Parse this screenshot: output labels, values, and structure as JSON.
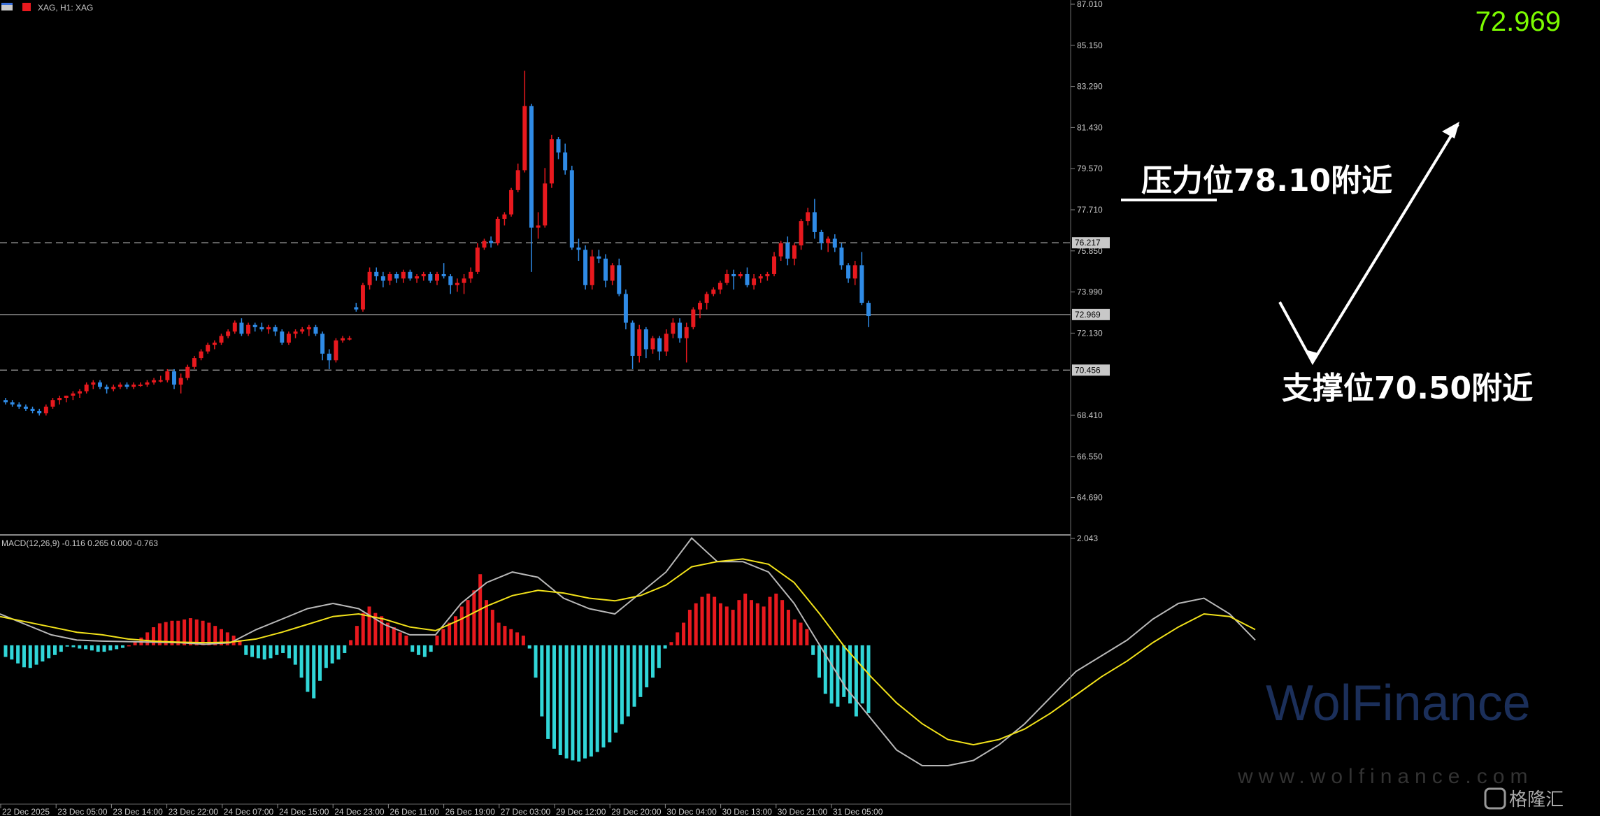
{
  "header": {
    "symbol_info": "XAG, H1: XAG"
  },
  "big_price": "72.969",
  "macd_label": "MACD(12,26,9) -0.116 0.265 0.000 -0.763",
  "annotations": {
    "resistance": "压力位78.10附近",
    "support": "支撑位70.50附近"
  },
  "watermark": {
    "brand": "WolFinance",
    "url": "www.wolfinance.com",
    "corner": "格隆汇"
  },
  "colors": {
    "bull": "#e8191e",
    "bear": "#2f8be6",
    "hist_pos": "#e8191e",
    "hist_neg": "#31d6d8",
    "macd_line": "#b8b8b8",
    "signal_line": "#f2e21a",
    "big_price": "#7cfc00"
  },
  "chart_data": {
    "type": "candlestick",
    "price_axis": {
      "min": 63.0,
      "max": 87.2,
      "ticks": [
        "87.010",
        "85.150",
        "83.290",
        "81.430",
        "79.570",
        "77.710",
        "75.850",
        "73.990",
        "72.130",
        "68.410",
        "66.550",
        "64.690"
      ]
    },
    "levels": [
      {
        "label": "76.217",
        "value": 76.217,
        "style": "dashed"
      },
      {
        "label": "72.969",
        "value": 72.969,
        "style": "solid"
      },
      {
        "label": "70.456",
        "value": 70.456,
        "style": "dashed"
      }
    ],
    "macd_axis": {
      "top_label": "2.043",
      "min": -2.3,
      "max": 2.043
    },
    "time_labels": [
      "22 Dec 2025",
      "23 Dec 05:00",
      "23 Dec 14:00",
      "23 Dec 22:00",
      "24 Dec 07:00",
      "24 Dec 15:00",
      "24 Dec 23:00",
      "26 Dec 11:00",
      "26 Dec 19:00",
      "27 Dec 03:00",
      "29 Dec 12:00",
      "29 Dec 20:00",
      "30 Dec 04:00",
      "30 Dec 13:00",
      "30 Dec 21:00",
      "31 Dec 05:00"
    ],
    "candles": [
      [
        69.1,
        69.2,
        68.9,
        69.0
      ],
      [
        69.0,
        69.1,
        68.8,
        68.9
      ],
      [
        68.9,
        69.0,
        68.7,
        68.8
      ],
      [
        68.8,
        68.9,
        68.6,
        68.7
      ],
      [
        68.7,
        68.8,
        68.5,
        68.6
      ],
      [
        68.6,
        68.7,
        68.4,
        68.5
      ],
      [
        68.5,
        68.9,
        68.4,
        68.8
      ],
      [
        68.8,
        69.2,
        68.7,
        69.1
      ],
      [
        69.1,
        69.3,
        68.9,
        69.2
      ],
      [
        69.2,
        69.3,
        69.0,
        69.3
      ],
      [
        69.3,
        69.5,
        69.1,
        69.4
      ],
      [
        69.4,
        69.6,
        69.2,
        69.5
      ],
      [
        69.5,
        69.9,
        69.4,
        69.8
      ],
      [
        69.8,
        70.0,
        69.6,
        69.9
      ],
      [
        69.9,
        70.0,
        69.6,
        69.7
      ],
      [
        69.7,
        69.8,
        69.4,
        69.6
      ],
      [
        69.6,
        69.8,
        69.5,
        69.7
      ],
      [
        69.7,
        69.9,
        69.6,
        69.8
      ],
      [
        69.8,
        69.9,
        69.6,
        69.7
      ],
      [
        69.7,
        69.9,
        69.6,
        69.8
      ],
      [
        69.8,
        69.9,
        69.7,
        69.8
      ],
      [
        69.8,
        70.0,
        69.7,
        69.9
      ],
      [
        69.9,
        70.1,
        69.8,
        70.0
      ],
      [
        70.0,
        70.2,
        69.9,
        70.0
      ],
      [
        70.0,
        70.5,
        69.9,
        70.4
      ],
      [
        70.4,
        70.5,
        69.6,
        69.8
      ],
      [
        69.8,
        70.3,
        69.4,
        70.1
      ],
      [
        70.1,
        70.7,
        70.0,
        70.6
      ],
      [
        70.6,
        71.1,
        70.5,
        71.0
      ],
      [
        71.0,
        71.4,
        70.9,
        71.3
      ],
      [
        71.3,
        71.7,
        71.2,
        71.6
      ],
      [
        71.6,
        71.8,
        71.4,
        71.7
      ],
      [
        71.7,
        72.1,
        71.6,
        72.0
      ],
      [
        72.0,
        72.3,
        71.9,
        72.2
      ],
      [
        72.2,
        72.7,
        72.1,
        72.6
      ],
      [
        72.6,
        72.8,
        72.0,
        72.1
      ],
      [
        72.1,
        72.6,
        72.0,
        72.5
      ],
      [
        72.5,
        72.6,
        72.2,
        72.4
      ],
      [
        72.4,
        72.6,
        72.2,
        72.3
      ],
      [
        72.3,
        72.5,
        72.1,
        72.4
      ],
      [
        72.4,
        72.5,
        72.0,
        72.2
      ],
      [
        72.2,
        72.3,
        71.6,
        71.7
      ],
      [
        71.7,
        72.2,
        71.6,
        72.1
      ],
      [
        72.1,
        72.3,
        71.9,
        72.2
      ],
      [
        72.2,
        72.4,
        72.1,
        72.3
      ],
      [
        72.3,
        72.5,
        72.0,
        72.4
      ],
      [
        72.4,
        72.5,
        72.0,
        72.1
      ],
      [
        72.1,
        72.2,
        70.9,
        71.2
      ],
      [
        71.2,
        71.4,
        70.5,
        70.9
      ],
      [
        70.9,
        71.9,
        70.8,
        71.8
      ],
      [
        71.8,
        72.0,
        71.7,
        71.9
      ],
      [
        71.9,
        72.0,
        71.8,
        71.9
      ],
      [
        73.3,
        73.5,
        73.1,
        73.2
      ],
      [
        73.2,
        74.4,
        73.1,
        74.3
      ],
      [
        74.3,
        75.1,
        74.1,
        74.9
      ],
      [
        74.9,
        75.1,
        74.5,
        74.7
      ],
      [
        74.7,
        74.9,
        74.2,
        74.5
      ],
      [
        74.5,
        74.9,
        74.3,
        74.8
      ],
      [
        74.8,
        74.9,
        74.4,
        74.6
      ],
      [
        74.6,
        75.0,
        74.4,
        74.9
      ],
      [
        74.9,
        75.0,
        74.5,
        74.6
      ],
      [
        74.6,
        74.8,
        74.4,
        74.7
      ],
      [
        74.7,
        74.9,
        74.5,
        74.8
      ],
      [
        74.8,
        74.9,
        74.4,
        74.5
      ],
      [
        74.5,
        74.9,
        74.3,
        74.8
      ],
      [
        74.8,
        75.3,
        74.6,
        74.7
      ],
      [
        74.7,
        74.8,
        73.9,
        74.3
      ],
      [
        74.3,
        74.6,
        74.0,
        74.4
      ],
      [
        74.4,
        74.8,
        73.9,
        74.6
      ],
      [
        74.6,
        75.1,
        74.4,
        74.9
      ],
      [
        74.9,
        76.2,
        74.8,
        76.0
      ],
      [
        76.0,
        76.4,
        75.9,
        76.3
      ],
      [
        76.3,
        76.5,
        76.0,
        76.2
      ],
      [
        76.2,
        77.4,
        76.1,
        77.3
      ],
      [
        77.3,
        77.6,
        77.0,
        77.5
      ],
      [
        77.5,
        78.7,
        77.4,
        78.6
      ],
      [
        78.6,
        79.8,
        78.5,
        79.5
      ],
      [
        79.5,
        84.0,
        79.4,
        82.4
      ],
      [
        82.4,
        82.5,
        74.9,
        76.9
      ],
      [
        76.9,
        77.6,
        76.4,
        77.0
      ],
      [
        77.0,
        79.6,
        76.9,
        78.9
      ],
      [
        78.9,
        81.1,
        78.7,
        80.9
      ],
      [
        80.9,
        81.0,
        80.0,
        80.3
      ],
      [
        80.3,
        80.7,
        79.3,
        79.5
      ],
      [
        79.5,
        79.7,
        75.9,
        76.0
      ],
      [
        76.0,
        76.4,
        75.4,
        75.9
      ],
      [
        75.9,
        76.1,
        74.1,
        74.3
      ],
      [
        74.3,
        75.9,
        74.1,
        75.6
      ],
      [
        75.6,
        75.9,
        75.3,
        75.5
      ],
      [
        75.5,
        75.7,
        74.2,
        74.5
      ],
      [
        74.5,
        75.3,
        74.3,
        75.2
      ],
      [
        75.2,
        75.5,
        73.8,
        73.9
      ],
      [
        73.9,
        74.1,
        72.3,
        72.6
      ],
      [
        72.6,
        72.7,
        70.5,
        71.1
      ],
      [
        71.1,
        72.5,
        70.8,
        72.3
      ],
      [
        72.3,
        72.4,
        71.0,
        71.4
      ],
      [
        71.4,
        72.0,
        71.2,
        71.9
      ],
      [
        71.9,
        72.0,
        70.9,
        71.3
      ],
      [
        71.3,
        72.3,
        71.1,
        72.1
      ],
      [
        72.1,
        72.8,
        71.9,
        72.6
      ],
      [
        72.6,
        72.8,
        71.7,
        71.9
      ],
      [
        71.9,
        72.6,
        70.8,
        72.4
      ],
      [
        72.4,
        73.3,
        72.3,
        73.2
      ],
      [
        73.2,
        73.6,
        72.8,
        73.5
      ],
      [
        73.5,
        74.0,
        73.2,
        73.9
      ],
      [
        73.9,
        74.2,
        73.8,
        74.1
      ],
      [
        74.1,
        74.5,
        73.9,
        74.4
      ],
      [
        74.4,
        75.0,
        74.3,
        74.8
      ],
      [
        74.8,
        75.0,
        74.1,
        74.7
      ],
      [
        74.7,
        74.9,
        74.6,
        74.8
      ],
      [
        74.8,
        75.1,
        74.2,
        74.3
      ],
      [
        74.3,
        74.8,
        74.1,
        74.6
      ],
      [
        74.6,
        74.8,
        74.4,
        74.7
      ],
      [
        74.7,
        74.9,
        74.5,
        74.8
      ],
      [
        74.8,
        75.8,
        74.7,
        75.6
      ],
      [
        75.6,
        76.3,
        75.4,
        76.2
      ],
      [
        76.2,
        76.5,
        75.2,
        75.5
      ],
      [
        75.5,
        76.2,
        75.2,
        76.1
      ],
      [
        76.1,
        77.3,
        75.9,
        77.2
      ],
      [
        77.2,
        77.8,
        77.0,
        77.6
      ],
      [
        77.6,
        78.2,
        76.4,
        76.7
      ],
      [
        76.7,
        76.8,
        75.9,
        76.2
      ],
      [
        76.2,
        76.5,
        75.8,
        76.4
      ],
      [
        76.4,
        76.6,
        75.8,
        76.0
      ],
      [
        76.0,
        76.2,
        75.0,
        75.2
      ],
      [
        75.2,
        75.3,
        74.4,
        74.6
      ],
      [
        74.6,
        75.4,
        74.3,
        75.2
      ],
      [
        75.2,
        75.8,
        73.4,
        73.5
      ],
      [
        73.5,
        73.6,
        72.4,
        72.9
      ]
    ],
    "macd_line": [
      0.6,
      0.4,
      0.2,
      0.1,
      0.08,
      0.07,
      0.06,
      0.05,
      0.02,
      0.05,
      0.3,
      0.5,
      0.7,
      0.8,
      0.7,
      0.4,
      0.2,
      0.2,
      0.8,
      1.2,
      1.4,
      1.3,
      0.9,
      0.7,
      0.6,
      1.0,
      1.4,
      2.05,
      1.6,
      1.6,
      1.4,
      0.8,
      0.0,
      -0.8,
      -1.4,
      -2.0,
      -2.3,
      -2.3,
      -2.2,
      -1.9,
      -1.5,
      -1.0,
      -0.5,
      -0.2,
      0.1,
      0.5,
      0.8,
      0.9,
      0.6,
      0.1
    ],
    "signal_line": [
      0.55,
      0.45,
      0.35,
      0.25,
      0.2,
      0.12,
      0.08,
      0.06,
      0.05,
      0.06,
      0.12,
      0.25,
      0.4,
      0.55,
      0.6,
      0.5,
      0.35,
      0.28,
      0.5,
      0.75,
      0.95,
      1.05,
      1.0,
      0.9,
      0.85,
      0.95,
      1.15,
      1.5,
      1.6,
      1.65,
      1.55,
      1.2,
      0.6,
      -0.05,
      -0.6,
      -1.1,
      -1.5,
      -1.8,
      -1.9,
      -1.8,
      -1.6,
      -1.3,
      -0.95,
      -0.6,
      -0.3,
      0.05,
      0.35,
      0.6,
      0.55,
      0.3
    ],
    "histogram": [
      -0.18,
      -0.22,
      -0.28,
      -0.34,
      -0.35,
      -0.3,
      -0.25,
      -0.2,
      -0.15,
      -0.1,
      -0.02,
      -0.03,
      -0.05,
      -0.06,
      -0.08,
      -0.1,
      -0.1,
      -0.08,
      -0.06,
      -0.04,
      0.0,
      0.05,
      0.12,
      0.2,
      0.28,
      0.34,
      0.36,
      0.38,
      0.38,
      0.4,
      0.42,
      0.4,
      0.38,
      0.35,
      0.3,
      0.25,
      0.2,
      0.15,
      0.08,
      -0.15,
      -0.18,
      -0.2,
      -0.22,
      -0.2,
      -0.15,
      -0.12,
      -0.2,
      -0.3,
      -0.5,
      -0.72,
      -0.82,
      -0.55,
      -0.35,
      -0.28,
      -0.22,
      -0.12,
      0.08,
      0.3,
      0.5,
      0.6,
      0.5,
      0.45,
      0.35,
      0.28,
      0.2,
      0.15,
      -0.1,
      -0.15,
      -0.18,
      -0.1,
      0.15,
      0.25,
      0.35,
      0.45,
      0.6,
      0.7,
      0.85,
      1.1,
      0.7,
      0.55,
      0.35,
      0.3,
      0.25,
      0.2,
      0.15,
      -0.05,
      -0.5,
      -1.1,
      -1.45,
      -1.6,
      -1.7,
      -1.75,
      -1.78,
      -1.8,
      -1.75,
      -1.72,
      -1.65,
      -1.58,
      -1.5,
      -1.35,
      -1.22,
      -1.1,
      -0.95,
      -0.8,
      -0.65,
      -0.5,
      -0.35,
      -0.05,
      0.05,
      0.2,
      0.35,
      0.55,
      0.65,
      0.75,
      0.8,
      0.75,
      0.65,
      0.6,
      0.55,
      0.7,
      0.8,
      0.7,
      0.65,
      0.6,
      0.75,
      0.8,
      0.7,
      0.55,
      0.4,
      0.35,
      0.25,
      -0.15,
      -0.5,
      -0.75,
      -0.9,
      -0.95,
      -0.8,
      -0.9,
      -1.1,
      -0.9,
      -1.05
    ]
  }
}
